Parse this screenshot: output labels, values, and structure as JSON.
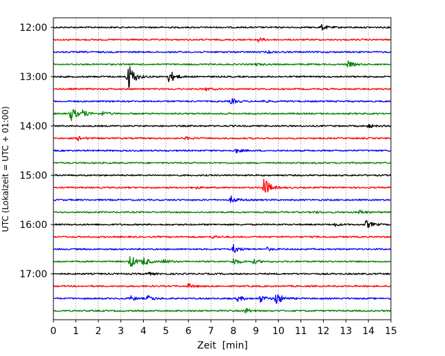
{
  "chart_data": {
    "type": "line",
    "title": "",
    "xlabel": "Zeit  [min]",
    "ylabel": "UTC (Lokalzeit = UTC + 01:00)",
    "xlim": [
      0,
      15
    ],
    "x_ticks": [
      "0",
      "1",
      "2",
      "3",
      "4",
      "5",
      "6",
      "7",
      "8",
      "9",
      "10",
      "11",
      "12",
      "13",
      "14",
      "15"
    ],
    "y_ticks": [
      "12:00",
      "13:00",
      "14:00",
      "15:00",
      "16:00",
      "17:00"
    ],
    "grid": "vertical dotted",
    "color_cycle": [
      "#000000",
      "#ff0000",
      "#0000ff",
      "#008000"
    ],
    "trace_interval_min": 15,
    "traces": [
      {
        "start": "12:00",
        "color": "#000000",
        "events": [
          {
            "t": 11.9,
            "amp": 4
          }
        ]
      },
      {
        "start": "12:15",
        "color": "#ff0000",
        "events": [
          {
            "t": 9.1,
            "amp": 3
          }
        ]
      },
      {
        "start": "12:30",
        "color": "#0000ff",
        "events": [
          {
            "t": 9.5,
            "amp": 1.5
          }
        ]
      },
      {
        "start": "12:45",
        "color": "#008000",
        "events": [
          {
            "t": 13.1,
            "amp": 4
          },
          {
            "t": 9.0,
            "amp": 1.5
          }
        ]
      },
      {
        "start": "13:00",
        "color": "#000000",
        "events": [
          {
            "t": 3.3,
            "amp": 24
          },
          {
            "t": 5.15,
            "amp": 10
          }
        ]
      },
      {
        "start": "13:15",
        "color": "#ff0000",
        "events": [
          {
            "t": 6.8,
            "amp": 2
          }
        ]
      },
      {
        "start": "13:30",
        "color": "#0000ff",
        "events": [
          {
            "t": 7.9,
            "amp": 4
          },
          {
            "t": 9.3,
            "amp": 1.5
          }
        ]
      },
      {
        "start": "13:45",
        "color": "#008000",
        "events": [
          {
            "t": 0.75,
            "amp": 12
          },
          {
            "t": 1.3,
            "amp": 4
          },
          {
            "t": 2.2,
            "amp": 3
          }
        ]
      },
      {
        "start": "14:00",
        "color": "#000000",
        "events": [
          {
            "t": 14.0,
            "amp": 2.5
          }
        ]
      },
      {
        "start": "14:15",
        "color": "#ff0000",
        "events": [
          {
            "t": 1.1,
            "amp": 3
          },
          {
            "t": 5.9,
            "amp": 2
          }
        ]
      },
      {
        "start": "14:30",
        "color": "#0000ff",
        "events": [
          {
            "t": 8.1,
            "amp": 3
          }
        ]
      },
      {
        "start": "14:45",
        "color": "#008000",
        "events": []
      },
      {
        "start": "15:00",
        "color": "#000000",
        "events": []
      },
      {
        "start": "15:15",
        "color": "#ff0000",
        "events": [
          {
            "t": 9.35,
            "amp": 16
          },
          {
            "t": 6.3,
            "amp": 1.5
          }
        ]
      },
      {
        "start": "15:30",
        "color": "#0000ff",
        "events": [
          {
            "t": 7.9,
            "amp": 5
          }
        ]
      },
      {
        "start": "15:45",
        "color": "#008000",
        "events": [
          {
            "t": 13.6,
            "amp": 3
          },
          {
            "t": 11.6,
            "amp": 1.5
          }
        ]
      },
      {
        "start": "16:00",
        "color": "#000000",
        "events": [
          {
            "t": 13.9,
            "amp": 6
          },
          {
            "t": 12.5,
            "amp": 2
          }
        ]
      },
      {
        "start": "16:15",
        "color": "#ff0000",
        "events": [
          {
            "t": 7.1,
            "amp": 2
          }
        ]
      },
      {
        "start": "16:30",
        "color": "#0000ff",
        "events": [
          {
            "t": 8.0,
            "amp": 6
          },
          {
            "t": 9.5,
            "amp": 2
          }
        ]
      },
      {
        "start": "16:45",
        "color": "#008000",
        "events": [
          {
            "t": 3.4,
            "amp": 10
          },
          {
            "t": 4.0,
            "amp": 6
          },
          {
            "t": 4.9,
            "amp": 3
          },
          {
            "t": 8.0,
            "amp": 5
          },
          {
            "t": 8.9,
            "amp": 3
          }
        ]
      },
      {
        "start": "17:00",
        "color": "#000000",
        "events": [
          {
            "t": 4.1,
            "amp": 3
          }
        ]
      },
      {
        "start": "17:15",
        "color": "#ff0000",
        "events": [
          {
            "t": 6.0,
            "amp": 3
          }
        ]
      },
      {
        "start": "17:30",
        "color": "#0000ff",
        "events": [
          {
            "t": 3.4,
            "amp": 4
          },
          {
            "t": 4.2,
            "amp": 4
          },
          {
            "t": 8.2,
            "amp": 4
          },
          {
            "t": 9.9,
            "amp": 10
          },
          {
            "t": 9.2,
            "amp": 5
          }
        ]
      },
      {
        "start": "17:45",
        "color": "#008000",
        "events": [
          {
            "t": 8.5,
            "amp": 4
          }
        ]
      }
    ]
  }
}
